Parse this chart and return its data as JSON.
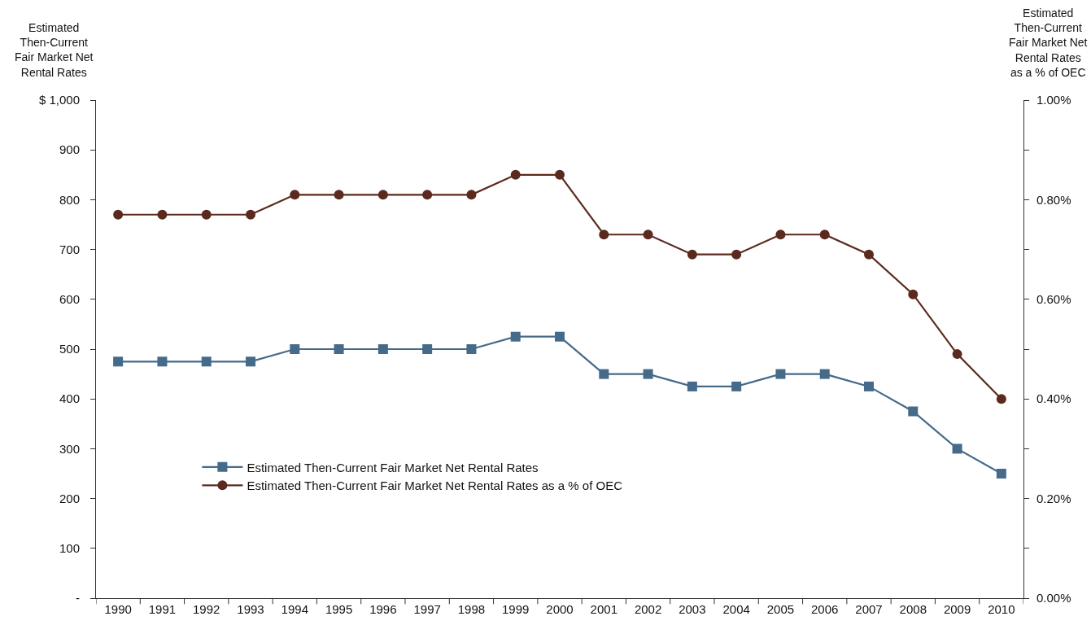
{
  "chart_data": {
    "type": "line",
    "ylabel": "Estimated\nThen-Current\nFair Market Net\nRental Rates",
    "y2label": "Estimated\nThen-Current\nFair Market Net\nRental Rates\nas a % of OEC",
    "categories": [
      "1990",
      "1991",
      "1992",
      "1993",
      "1994",
      "1995",
      "1996",
      "1997",
      "1998",
      "1999",
      "2000",
      "2001",
      "2002",
      "2003",
      "2004",
      "2005",
      "2006",
      "2007",
      "2008",
      "2009",
      "2010"
    ],
    "series": [
      {
        "name": "Estimated Then-Current Fair Market Net Rental Rates",
        "color": "#456a8a",
        "marker": "square",
        "values": [
          475,
          475,
          475,
          475,
          500,
          500,
          500,
          500,
          500,
          525,
          525,
          450,
          450,
          425,
          425,
          450,
          450,
          425,
          375,
          300,
          250
        ]
      },
      {
        "name": "Estimated Then-Current Fair Market Net Rental Rates as a % of OEC",
        "color": "#5a2a1e",
        "marker": "circle",
        "axis": "y2",
        "values": [
          0.77,
          0.77,
          0.77,
          0.77,
          0.81,
          0.81,
          0.81,
          0.81,
          0.81,
          0.85,
          0.85,
          0.73,
          0.73,
          0.69,
          0.69,
          0.73,
          0.73,
          0.69,
          0.61,
          0.49,
          0.4
        ]
      }
    ],
    "ylim": [
      0,
      1000
    ],
    "yticks": [
      {
        "value": 0,
        "label": "-"
      },
      100,
      200,
      300,
      400,
      500,
      600,
      700,
      800,
      900,
      {
        "value": 1000,
        "label": "$ 1,000"
      }
    ],
    "y2lim": [
      0,
      1
    ],
    "y2ticks": [
      {
        "value": 0,
        "label": "0.00%"
      },
      {
        "value": 0.1,
        "label": null
      },
      {
        "value": 0.2,
        "label": "0.20%"
      },
      {
        "value": 0.3,
        "label": null
      },
      {
        "value": 0.4,
        "label": "0.40%"
      },
      {
        "value": 0.5,
        "label": null
      },
      {
        "value": 0.6,
        "label": "0.60%"
      },
      {
        "value": 0.7,
        "label": null
      },
      {
        "value": 0.8,
        "label": "0.80%"
      },
      {
        "value": 0.9,
        "label": null
      },
      {
        "value": 1,
        "label": "1.00%"
      }
    ],
    "grid": false,
    "legend": "bottom left",
    "line_style": "solid"
  }
}
